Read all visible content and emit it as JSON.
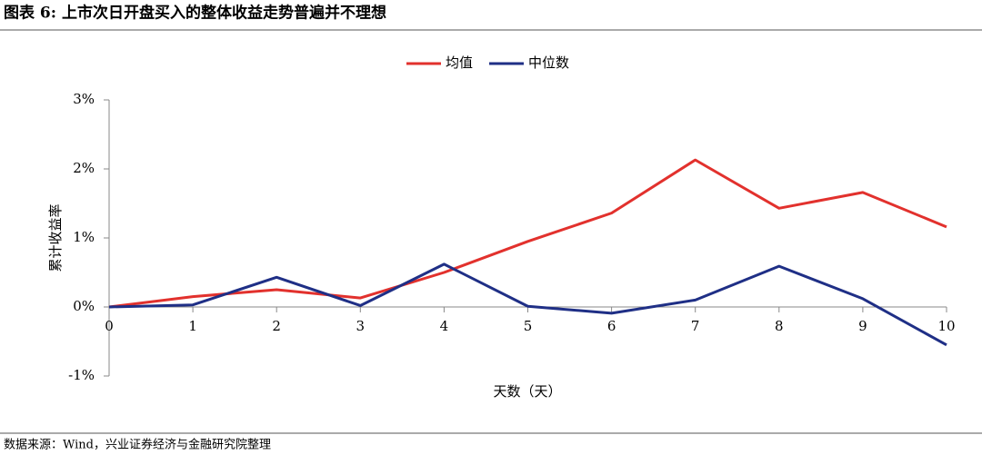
{
  "chart_data": {
    "type": "line",
    "title": "图表 6: 上市次日开盘买入的整体收益走势普遍并不理想",
    "source": "数据来源：Wind，兴业证券经济与金融研究院整理",
    "x_label": "天数（天）",
    "y_label": "累计收益率",
    "x": [
      0,
      1,
      2,
      3,
      4,
      5,
      6,
      7,
      8,
      9,
      10
    ],
    "series": [
      {
        "name": "均值",
        "color": "#e2312d",
        "values": [
          0,
          0.15,
          0.25,
          0.13,
          0.5,
          0.95,
          1.36,
          2.13,
          1.43,
          1.66,
          1.16
        ]
      },
      {
        "name": "中位数",
        "color": "#1f2f86",
        "values": [
          0,
          0.03,
          0.43,
          0.02,
          0.62,
          0.01,
          -0.09,
          0.1,
          0.59,
          0.12,
          -0.55
        ]
      }
    ],
    "xlim": [
      0,
      10
    ],
    "xticks": [
      0,
      1,
      2,
      3,
      4,
      5,
      6,
      7,
      8,
      9,
      10
    ],
    "ylim": [
      -1,
      3
    ],
    "yticks": [
      {
        "value": -1,
        "label": "-1%"
      },
      {
        "value": 0,
        "label": "0%"
      },
      {
        "value": 1,
        "label": "1%"
      },
      {
        "value": 2,
        "label": "2%"
      },
      {
        "value": 3,
        "label": "3%"
      }
    ],
    "legend": "top"
  }
}
